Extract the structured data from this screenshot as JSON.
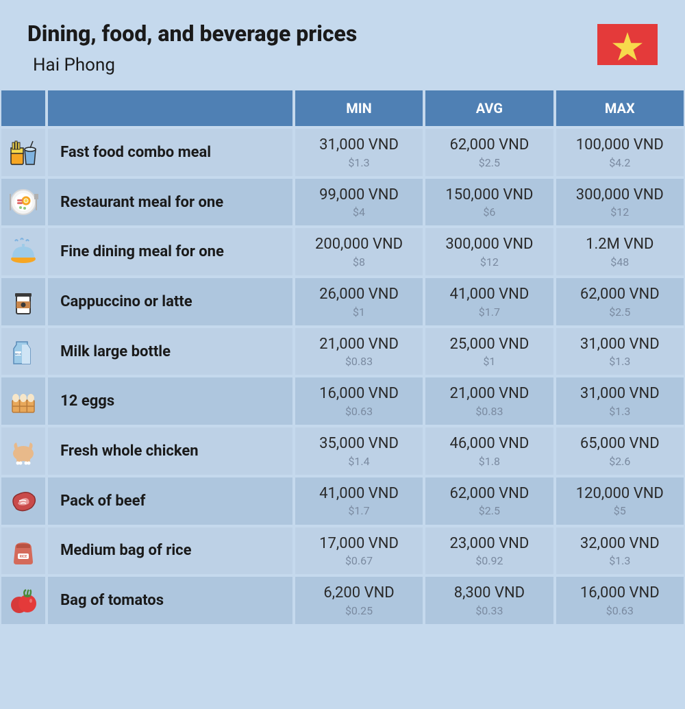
{
  "header": {
    "title": "Dining, food, and beverage prices",
    "location": "Hai Phong"
  },
  "flag": {
    "name": "vietnam-flag",
    "bg_color": "#e43a3a",
    "star_color": "#f7d94c"
  },
  "colors": {
    "page_bg": "#c5d9ed",
    "header_bg": "#4f80b4",
    "header_text": "#ffffff",
    "row_even": "#bdd1e6",
    "row_odd": "#aec6de",
    "text_primary": "#1a1a1a",
    "text_secondary": "#7a8aa0"
  },
  "columns": [
    "",
    "",
    "MIN",
    "AVG",
    "MAX"
  ],
  "rows": [
    {
      "icon": "fast-food-icon",
      "name": "Fast food combo meal",
      "min_vnd": "31,000 VND",
      "min_usd": "$1.3",
      "avg_vnd": "62,000 VND",
      "avg_usd": "$2.5",
      "max_vnd": "100,000 VND",
      "max_usd": "$4.2"
    },
    {
      "icon": "restaurant-meal-icon",
      "name": "Restaurant meal for one",
      "min_vnd": "99,000 VND",
      "min_usd": "$4",
      "avg_vnd": "150,000 VND",
      "avg_usd": "$6",
      "max_vnd": "300,000 VND",
      "max_usd": "$12"
    },
    {
      "icon": "fine-dining-icon",
      "name": "Fine dining meal for one",
      "min_vnd": "200,000 VND",
      "min_usd": "$8",
      "avg_vnd": "300,000 VND",
      "avg_usd": "$12",
      "max_vnd": "1.2M VND",
      "max_usd": "$48"
    },
    {
      "icon": "coffee-icon",
      "name": "Cappuccino or latte",
      "min_vnd": "26,000 VND",
      "min_usd": "$1",
      "avg_vnd": "41,000 VND",
      "avg_usd": "$1.7",
      "max_vnd": "62,000 VND",
      "max_usd": "$2.5"
    },
    {
      "icon": "milk-icon",
      "name": "Milk large bottle",
      "min_vnd": "21,000 VND",
      "min_usd": "$0.83",
      "avg_vnd": "25,000 VND",
      "avg_usd": "$1",
      "max_vnd": "31,000 VND",
      "max_usd": "$1.3"
    },
    {
      "icon": "eggs-icon",
      "name": "12 eggs",
      "min_vnd": "16,000 VND",
      "min_usd": "$0.63",
      "avg_vnd": "21,000 VND",
      "avg_usd": "$0.83",
      "max_vnd": "31,000 VND",
      "max_usd": "$1.3"
    },
    {
      "icon": "chicken-icon",
      "name": "Fresh whole chicken",
      "min_vnd": "35,000 VND",
      "min_usd": "$1.4",
      "avg_vnd": "46,000 VND",
      "avg_usd": "$1.8",
      "max_vnd": "65,000 VND",
      "max_usd": "$2.6"
    },
    {
      "icon": "beef-icon",
      "name": "Pack of beef",
      "min_vnd": "41,000 VND",
      "min_usd": "$1.7",
      "avg_vnd": "62,000 VND",
      "avg_usd": "$2.5",
      "max_vnd": "120,000 VND",
      "max_usd": "$5"
    },
    {
      "icon": "rice-icon",
      "name": "Medium bag of rice",
      "min_vnd": "17,000 VND",
      "min_usd": "$0.67",
      "avg_vnd": "23,000 VND",
      "avg_usd": "$0.92",
      "max_vnd": "32,000 VND",
      "max_usd": "$1.3"
    },
    {
      "icon": "tomato-icon",
      "name": "Bag of tomatos",
      "min_vnd": "6,200 VND",
      "min_usd": "$0.25",
      "avg_vnd": "8,300 VND",
      "avg_usd": "$0.33",
      "max_vnd": "16,000 VND",
      "max_usd": "$0.63"
    }
  ]
}
